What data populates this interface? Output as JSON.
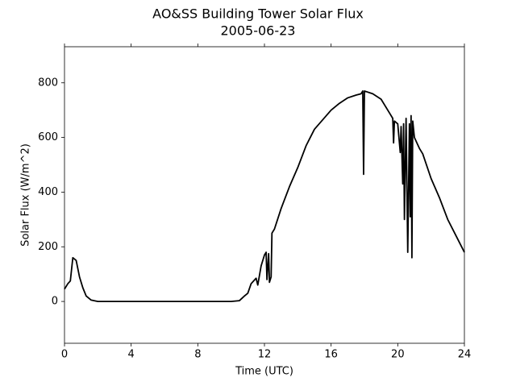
{
  "chart_data": {
    "type": "line",
    "title": "AO&SS Building Tower Solar Flux",
    "subtitle": "2005-06-23",
    "x_label": "Time (UTC)",
    "y_label": "Solar Flux (W/m^2)",
    "xlim": [
      0,
      24
    ],
    "xticks": [
      0,
      4,
      8,
      12,
      16,
      20,
      24
    ],
    "ylim": [
      -153,
      932
    ],
    "yticks": [
      0,
      200,
      400,
      600,
      800
    ],
    "grid": false,
    "series": [
      {
        "color": "#000000",
        "x": [
          0,
          0.2,
          0.35,
          0.5,
          0.7,
          0.9,
          1.1,
          1.3,
          1.6,
          2,
          10,
          10.5,
          10.8,
          11,
          11.2,
          11.5,
          11.6,
          11.8,
          12.0,
          12.1,
          12.15,
          12.25,
          12.3,
          12.4,
          12.45,
          12.6,
          13,
          13.5,
          14,
          14.5,
          15,
          15.5,
          16,
          16.5,
          17,
          17.5,
          17.8,
          17.9,
          17.95,
          18.0,
          18.5,
          19,
          19.5,
          19.7,
          19.75,
          19.8,
          20.0,
          20.15,
          20.2,
          20.3,
          20.35,
          20.4,
          20.5,
          20.6,
          20.7,
          20.75,
          20.8,
          20.85,
          20.9,
          21.0,
          21.3,
          21.5,
          22,
          22.5,
          23,
          23.5,
          24
        ],
        "values": [
          45,
          65,
          75,
          160,
          150,
          90,
          50,
          20,
          5,
          0,
          0,
          3,
          20,
          30,
          65,
          85,
          60,
          130,
          170,
          180,
          80,
          175,
          70,
          90,
          250,
          265,
          340,
          420,
          490,
          570,
          630,
          665,
          700,
          725,
          745,
          755,
          760,
          770,
          465,
          770,
          760,
          740,
          690,
          670,
          580,
          660,
          650,
          545,
          640,
          430,
          650,
          300,
          670,
          180,
          650,
          310,
          680,
          160,
          660,
          600,
          560,
          540,
          450,
          380,
          300,
          240,
          180
        ]
      }
    ]
  }
}
